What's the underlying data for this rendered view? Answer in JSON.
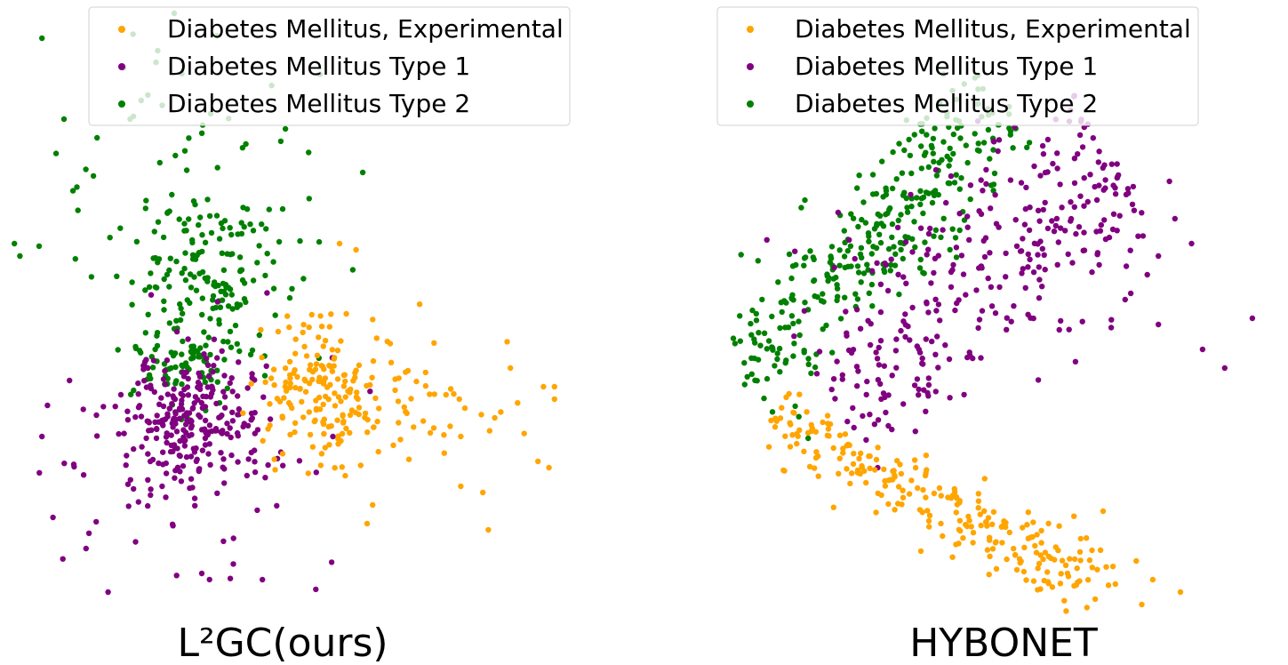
{
  "chart_data": [
    {
      "type": "scatter",
      "title": "L²GC(ours)",
      "seed": 7,
      "legend": {
        "placement": "top-center",
        "entries": [
          {
            "label": "Diabetes Mellitus, Experimental",
            "color": "#FFA500"
          },
          {
            "label": "Diabetes Mellitus Type 1",
            "color": "#800080"
          },
          {
            "label": "Diabetes Mellitus Type 2",
            "color": "#008000"
          }
        ]
      },
      "axes": "off",
      "xlim": [
        0,
        100
      ],
      "ylim": [
        0,
        100
      ],
      "series": [
        {
          "name": "Diabetes Mellitus Type 2",
          "color": "#008000",
          "clusters": [
            {
              "n": 170,
              "cx": 36,
              "cy": 55,
              "sx": 6.5,
              "sy": 7.5
            },
            {
              "n": 60,
              "cx": 31,
              "cy": 43,
              "sx": 5,
              "sy": 3
            },
            {
              "n": 50,
              "cx": 30,
              "cy": 72,
              "sx": 14,
              "sy": 10
            }
          ],
          "points": [
            [
              1,
              62
            ],
            [
              2,
              60
            ],
            [
              6,
              95
            ],
            [
              10,
              82
            ],
            [
              24,
              85
            ],
            [
              22,
              82
            ],
            [
              16,
              79
            ],
            [
              27,
              93
            ],
            [
              30,
              99
            ],
            [
              43,
              78
            ]
          ]
        },
        {
          "name": "Diabetes Mellitus Type 1",
          "color": "#800080",
          "clusters": [
            {
              "n": 210,
              "cx": 34,
              "cy": 34,
              "sx": 6,
              "sy": 5
            },
            {
              "n": 100,
              "cx": 30,
              "cy": 28,
              "sx": 14,
              "sy": 11
            }
          ],
          "points": [
            [
              18,
              6
            ],
            [
              35,
              9
            ],
            [
              46,
              8
            ],
            [
              8,
              18
            ],
            [
              14,
              13
            ],
            [
              6,
              31
            ],
            [
              7,
              36
            ],
            [
              11,
              40
            ]
          ]
        },
        {
          "name": "Diabetes Mellitus, Experimental",
          "color": "#FFA500",
          "clusters": [
            {
              "n": 160,
              "cx": 57,
              "cy": 38,
              "sx": 6,
              "sy": 6
            },
            {
              "n": 60,
              "cx": 74,
              "cy": 37,
              "sx": 11,
              "sy": 5
            }
          ],
          "points": [
            [
              99,
              37
            ],
            [
              99,
              39
            ],
            [
              97,
              39
            ],
            [
              98,
              26
            ],
            [
              96,
              27
            ],
            [
              91,
              42
            ],
            [
              86,
              22
            ],
            [
              82,
              23
            ],
            [
              87,
              16
            ],
            [
              82,
              31
            ],
            [
              65,
              17
            ],
            [
              66,
              20
            ],
            [
              60,
              62
            ],
            [
              63,
              61
            ]
          ]
        }
      ]
    },
    {
      "type": "scatter",
      "title": "HYBONET",
      "seed": 21,
      "legend": {
        "placement": "top-center",
        "entries": [
          {
            "label": "Diabetes Mellitus, Experimental",
            "color": "#FFA500"
          },
          {
            "label": "Diabetes Mellitus Type 1",
            "color": "#800080"
          },
          {
            "label": "Diabetes Mellitus Type 2",
            "color": "#008000"
          }
        ]
      },
      "axes": "off",
      "xlim": [
        0,
        100
      ],
      "ylim": [
        0,
        100
      ],
      "series": [
        {
          "name": "Diabetes Mellitus Type 2",
          "color": "#008000",
          "band": {
            "n": 330,
            "x0": 2,
            "y0": 40,
            "x1": 50,
            "y1": 85,
            "spread": 5
          },
          "points": [
            [
              51,
              84
            ],
            [
              48,
              83
            ],
            [
              32,
              62
            ],
            [
              27,
              70
            ]
          ]
        },
        {
          "name": "Diabetes Mellitus Type 1",
          "color": "#800080",
          "band": {
            "n": 330,
            "x0": 18,
            "y0": 38,
            "x1": 70,
            "y1": 76,
            "spread": 8
          },
          "points": [
            [
              80,
              72
            ],
            [
              84,
              62
            ],
            [
              95,
              50
            ],
            [
              81,
              66
            ],
            [
              86,
              45
            ],
            [
              90,
              42
            ],
            [
              78,
              60
            ],
            [
              72,
              53
            ],
            [
              78,
              49
            ],
            [
              73,
              54
            ],
            [
              76,
              57
            ]
          ]
        },
        {
          "name": "Diabetes Mellitus, Experimental",
          "color": "#FFA500",
          "band": {
            "n": 250,
            "x0": 8,
            "y0": 34,
            "x1": 70,
            "y1": 6,
            "spread": 3
          },
          "points": [
            [
              77,
              8
            ],
            [
              82,
              6
            ],
            [
              75,
              4
            ],
            [
              74,
              11
            ],
            [
              68,
              19
            ]
          ]
        }
      ]
    }
  ]
}
